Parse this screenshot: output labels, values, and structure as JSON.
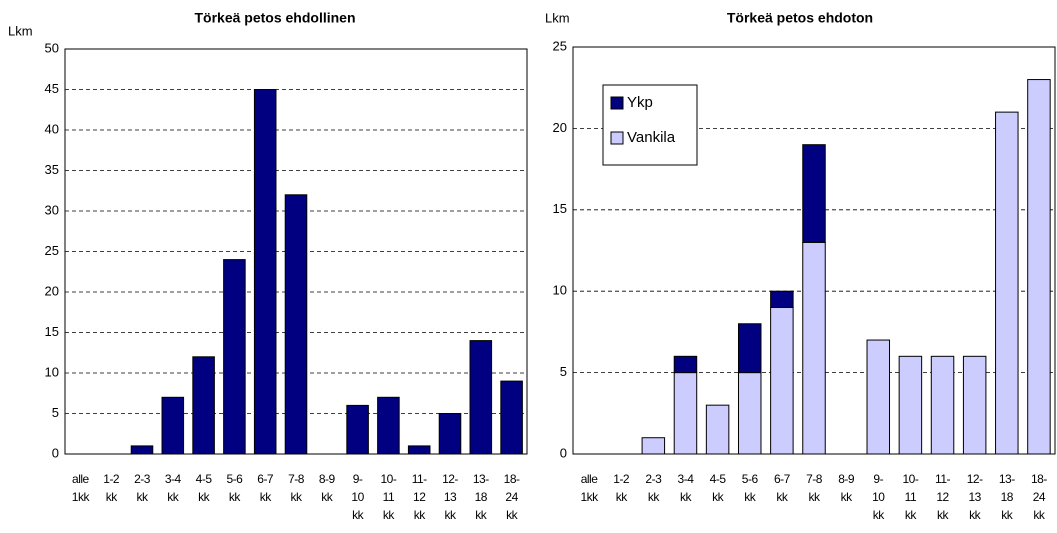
{
  "chart_data": [
    {
      "type": "bar",
      "title": "Törkeä petos ehdollinen",
      "y_label": "Lkm",
      "categories": [
        [
          "alle",
          "1kk"
        ],
        [
          "1-2",
          "kk"
        ],
        [
          "2-3",
          "kk"
        ],
        [
          "3-4",
          "kk"
        ],
        [
          "4-5",
          "kk"
        ],
        [
          "5-6",
          "kk"
        ],
        [
          "6-7",
          "kk"
        ],
        [
          "7-8",
          "kk"
        ],
        [
          "8-9",
          "kk"
        ],
        [
          "9-",
          "10",
          "kk"
        ],
        [
          "10-",
          "11",
          "kk"
        ],
        [
          "11-",
          "12",
          "kk"
        ],
        [
          "12-",
          "13",
          "kk"
        ],
        [
          "13-",
          "18",
          "kk"
        ],
        [
          "18-",
          "24",
          "kk"
        ]
      ],
      "values": [
        0,
        0,
        1,
        7,
        12,
        24,
        45,
        32,
        0,
        6,
        7,
        1,
        5,
        14,
        9
      ],
      "color": "#000080",
      "ylim": [
        0,
        50
      ],
      "yticks": [
        0,
        5,
        10,
        15,
        20,
        25,
        30,
        35,
        40,
        45,
        50
      ],
      "grid": true
    },
    {
      "type": "stacked_bar",
      "title": "Törkeä petos ehdoton",
      "y_label": "Lkm",
      "categories": [
        [
          "alle",
          "1kk"
        ],
        [
          "1-2",
          "kk"
        ],
        [
          "2-3",
          "kk"
        ],
        [
          "3-4",
          "kk"
        ],
        [
          "4-5",
          "kk"
        ],
        [
          "5-6",
          "kk"
        ],
        [
          "6-7",
          "kk"
        ],
        [
          "7-8",
          "kk"
        ],
        [
          "8-9",
          "kk"
        ],
        [
          "9-",
          "10",
          "kk"
        ],
        [
          "10-",
          "11",
          "kk"
        ],
        [
          "11-",
          "12",
          "kk"
        ],
        [
          "12-",
          "13",
          "kk"
        ],
        [
          "13-",
          "18",
          "kk"
        ],
        [
          "18-",
          "24",
          "kk"
        ]
      ],
      "series": [
        {
          "name": "Ykp",
          "color": "#000080",
          "values": [
            0,
            0,
            0,
            1,
            0,
            3,
            1,
            6,
            0,
            0,
            0,
            0,
            0,
            0,
            0
          ]
        },
        {
          "name": "Vankila",
          "color": "#ccccff",
          "values": [
            0,
            0,
            1,
            5,
            3,
            5,
            9,
            13,
            0,
            7,
            6,
            6,
            6,
            21,
            23
          ]
        }
      ],
      "ylim": [
        0,
        25
      ],
      "yticks": [
        0,
        5,
        10,
        15,
        20,
        25
      ],
      "grid": true,
      "legend": "top-left"
    }
  ]
}
